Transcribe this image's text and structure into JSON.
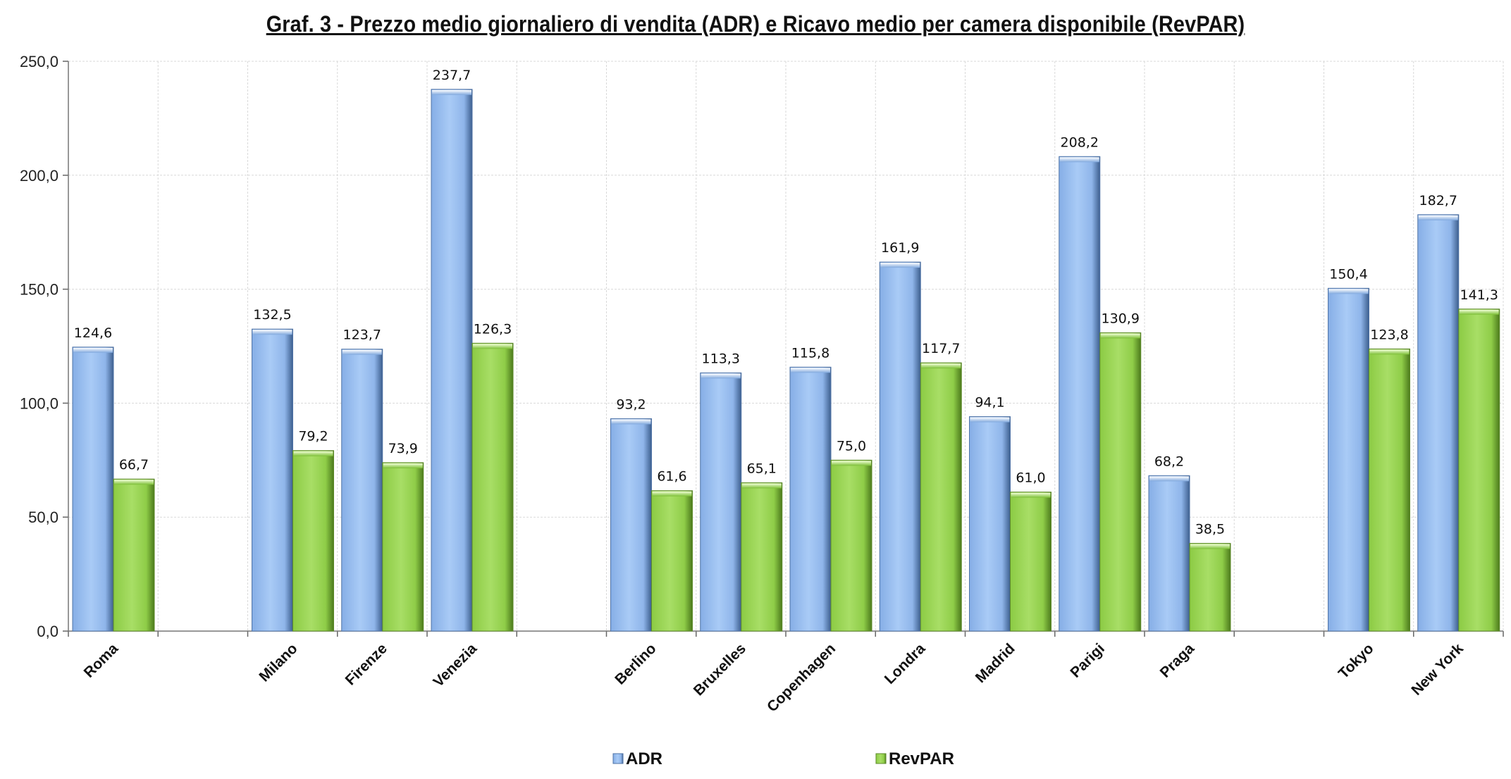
{
  "chart_data": {
    "type": "bar",
    "title": "Graf. 3 - Prezzo medio giornaliero di vendita (ADR) e Ricavo medio per camera disponibile (RevPAR)",
    "categories": [
      "Roma",
      "",
      "Milano",
      "Firenze",
      "Venezia",
      "",
      "Berlino",
      "Bruxelles",
      "Copenhagen",
      "Londra",
      "Madrid",
      "Parigi",
      "Praga",
      "",
      "Tokyo",
      "New York"
    ],
    "series": [
      {
        "name": "ADR",
        "color": "#9bbff0",
        "values": [
          124.6,
          null,
          132.5,
          123.7,
          237.7,
          null,
          93.2,
          113.3,
          115.8,
          161.9,
          94.1,
          208.2,
          68.2,
          null,
          150.4,
          182.7
        ],
        "labels": [
          "124,6",
          "",
          "132,5",
          "123,7",
          "237,7",
          "",
          "93,2",
          "113,3",
          "115,8",
          "161,9",
          "94,1",
          "208,2",
          "68,2",
          "",
          "150,4",
          "182,7"
        ]
      },
      {
        "name": "RevPAR",
        "color": "#9ed756",
        "values": [
          66.7,
          null,
          79.2,
          73.9,
          126.3,
          null,
          61.6,
          65.1,
          75.0,
          117.7,
          61.0,
          130.9,
          38.5,
          null,
          123.8,
          141.3
        ],
        "labels": [
          "66,7",
          "",
          "79,2",
          "73,9",
          "126,3",
          "",
          "61,6",
          "65,1",
          "75,0",
          "117,7",
          "61,0",
          "130,9",
          "38,5",
          "",
          "123,8",
          "141,3"
        ]
      }
    ],
    "ylim": [
      0,
      250
    ],
    "yticks": [
      0,
      50,
      100,
      150,
      200,
      250
    ],
    "ytick_labels": [
      "0,0",
      "50,0",
      "100,0",
      "150,0",
      "200,0",
      "250,0"
    ],
    "grid": true,
    "legend_position": "bottom"
  }
}
